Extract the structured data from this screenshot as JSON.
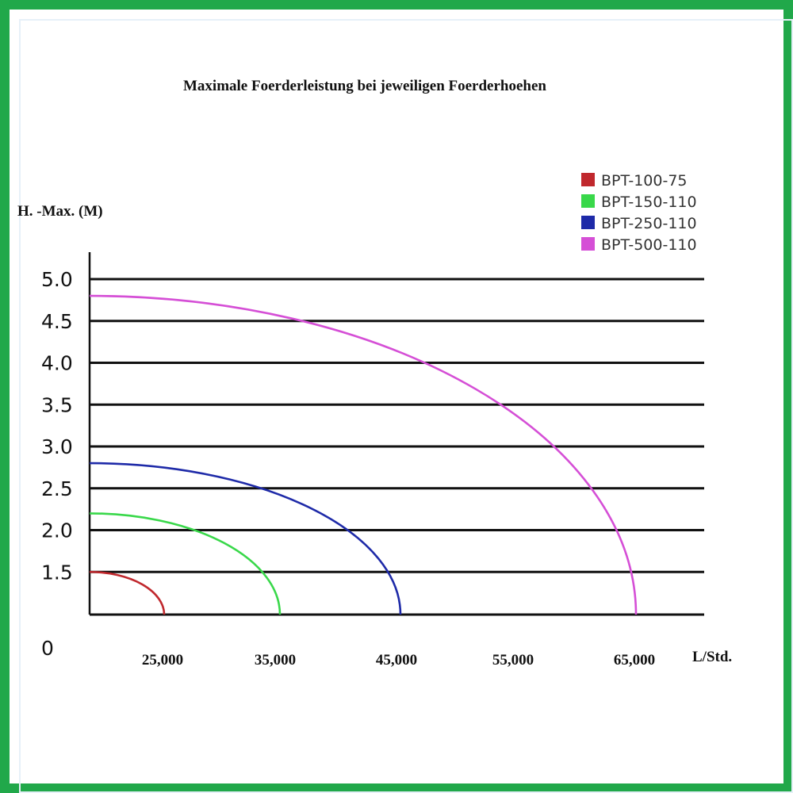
{
  "chart_data": {
    "type": "line",
    "title": "Maximale Foerderleistung  bei  jeweiligen Foerderhoehen",
    "ylabel": "H. -Max. (M)",
    "xlabel": "L/Std.",
    "y_origin_label": "0",
    "y_ticks": [
      "1.5",
      "2.0",
      "2.5",
      "3.0",
      "3.5",
      "4.0",
      "4.5",
      "5.0"
    ],
    "x_ticks": [
      "25,000",
      "35,000",
      "45,000",
      "55,000",
      "65,000"
    ],
    "grid": true,
    "legend_position": "top-right",
    "series": [
      {
        "name": "BPT-100-75",
        "color": "#c0282d",
        "max_head_m": 1.5,
        "max_flow_lph": 25000
      },
      {
        "name": "BPT-150-110",
        "color": "#39d84a",
        "max_head_m": 2.2,
        "max_flow_lph": 35000
      },
      {
        "name": "BPT-250-110",
        "color": "#1e2aa8",
        "max_head_m": 2.8,
        "max_flow_lph": 45000
      },
      {
        "name": "BPT-500-110",
        "color": "#d54fd6",
        "max_head_m": 4.8,
        "max_flow_lph": 65000
      }
    ]
  }
}
